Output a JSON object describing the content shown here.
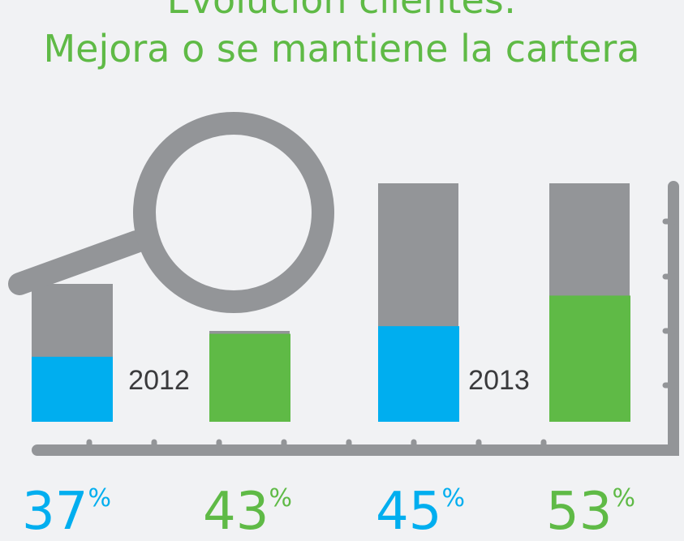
{
  "chart_data": {
    "type": "bar",
    "title": "Evolución clientes:",
    "subtitle": "Mejora o se mantiene la cartera",
    "categories": [
      "2012",
      "2013"
    ],
    "series": [
      {
        "color": "#00aeef",
        "values": [
          37,
          45
        ],
        "value_labels": [
          "37%",
          "45%"
        ]
      },
      {
        "color": "#5fba46",
        "values": [
          43,
          53
        ],
        "value_labels": [
          "43%",
          "53%"
        ]
      }
    ],
    "ylim": [
      20,
      55
    ]
  }
}
